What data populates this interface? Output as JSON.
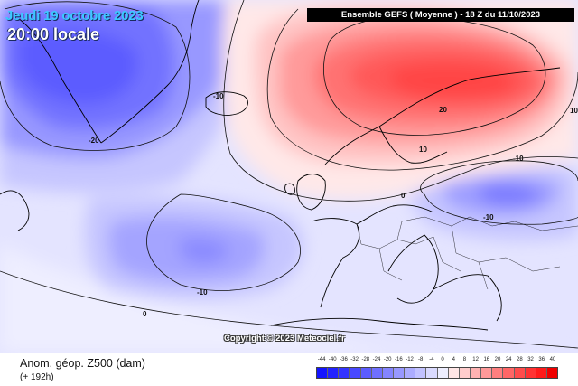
{
  "header": {
    "date": "Jeudi 19 octobre 2023",
    "time": "20:00 locale",
    "model_run": "Ensemble GEFS  ( Moyenne )  -  18 Z du 11/10/2023"
  },
  "map": {
    "copyright": "Copyright © 2023 Meteociel.fr",
    "contour_labels": [
      "-10",
      "-20",
      "-10",
      "-10",
      "0",
      "-10",
      "10",
      "20",
      "0",
      "10"
    ]
  },
  "footer": {
    "parameter": "Anom. géop. Z500 (dam)",
    "lead_time": "(+ 192h)"
  },
  "legend": {
    "values": [
      "-44",
      "-40",
      "-36",
      "-32",
      "-28",
      "-24",
      "-20",
      "-16",
      "-12",
      "-8",
      "-4",
      "0",
      "4",
      "8",
      "12",
      "16",
      "20",
      "24",
      "28",
      "32",
      "36",
      "40"
    ],
    "colors": [
      "#1414ff",
      "#2222ff",
      "#3333ff",
      "#4848ff",
      "#5c5cff",
      "#7070ff",
      "#8484ff",
      "#9898ff",
      "#acacff",
      "#c2c2ff",
      "#dadaff",
      "#eeeeff",
      "#ffe6e6",
      "#ffcccc",
      "#ffb2b2",
      "#ff9999",
      "#ff7f7f",
      "#ff6666",
      "#ff4c4c",
      "#ff3232",
      "#ff1a1a",
      "#f00000"
    ]
  }
}
